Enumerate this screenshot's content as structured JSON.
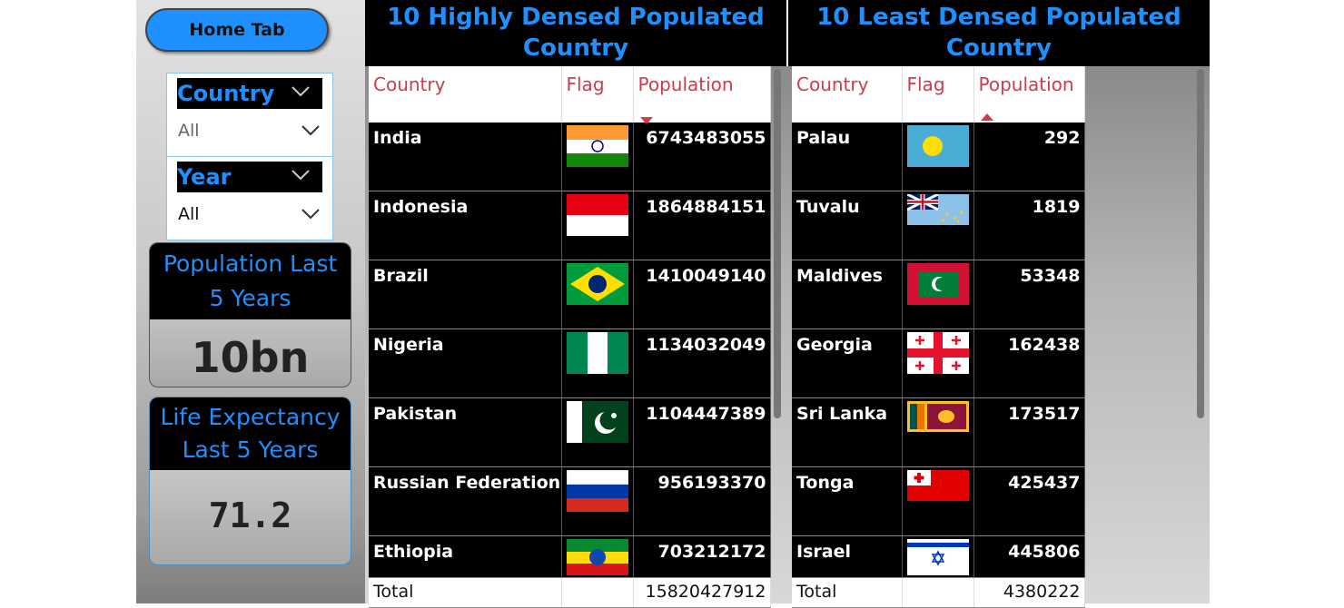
{
  "sidebar": {
    "home_button": "Home Tab",
    "filters": [
      {
        "label": "Country",
        "value": "All"
      },
      {
        "label": "Year",
        "value": "All"
      }
    ],
    "cards": [
      {
        "title": "Population Last 5 Years",
        "value": "10bn"
      },
      {
        "title": "Life Expectancy Last 5 Years",
        "value": 71.2
      }
    ]
  },
  "tables": [
    {
      "title": "10 Highly Densed Populated Country",
      "columns": [
        "Country",
        "Flag",
        "Population"
      ],
      "rows": [
        [
          "India",
          6743483055
        ],
        [
          "Indonesia",
          1864884151
        ],
        [
          "Brazil",
          1410049140
        ],
        [
          "Nigeria",
          1134032049
        ],
        [
          "Pakistan",
          1104447389
        ],
        [
          "Russian Federation",
          956193370
        ],
        [
          "Ethiopia",
          703212172
        ]
      ],
      "total": [
        "Total",
        15820427912
      ]
    },
    {
      "title": "10 Least Densed Populated Country",
      "columns": [
        "Country",
        "Flag",
        "Population"
      ],
      "rows": [
        [
          "Palau",
          292
        ],
        [
          "Tuvalu",
          1819
        ],
        [
          "Maldives",
          53348
        ],
        [
          "Georgia",
          162438
        ],
        [
          "Sri Lanka",
          173517
        ],
        [
          "Tonga",
          425437
        ],
        [
          "Israel",
          445806
        ]
      ],
      "total": [
        "Total",
        4380222
      ]
    }
  ]
}
